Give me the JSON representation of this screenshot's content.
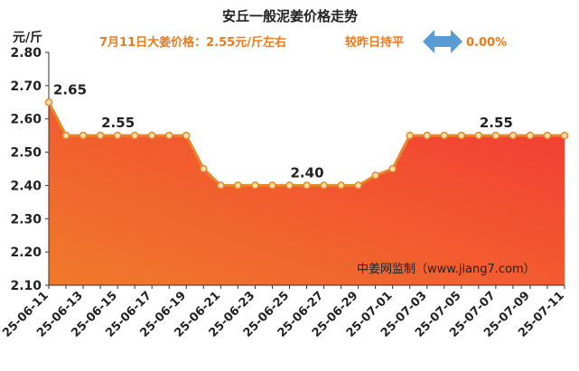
{
  "chart_data": {
    "type": "area",
    "title": "安丘一般泥姜价格走势",
    "subtitle": {
      "price_text": "7月11日大姜价格：2.55元/斤左右",
      "change_text": "较昨日持平",
      "change_value": "0.00%",
      "change_icon": "double-arrow-icon"
    },
    "ylabel": "元/斤",
    "ylim": [
      2.1,
      2.8
    ],
    "yticks": [
      "2.10",
      "2.20",
      "2.30",
      "2.40",
      "2.50",
      "2.60",
      "2.70",
      "2.80"
    ],
    "x": [
      "25-06-11",
      "25-06-12",
      "25-06-13",
      "25-06-14",
      "25-06-15",
      "25-06-16",
      "25-06-17",
      "25-06-18",
      "25-06-19",
      "25-06-20",
      "25-06-21",
      "25-06-22",
      "25-06-23",
      "25-06-24",
      "25-06-25",
      "25-06-26",
      "25-06-27",
      "25-06-28",
      "25-06-29",
      "25-06-30",
      "25-07-01",
      "25-07-02",
      "25-07-03",
      "25-07-04",
      "25-07-05",
      "25-07-06",
      "25-07-07",
      "25-07-08",
      "25-07-09",
      "25-07-10",
      "25-07-11"
    ],
    "xtick_labels": [
      "25-06-11",
      "25-06-13",
      "25-06-15",
      "25-06-17",
      "25-06-19",
      "25-06-21",
      "25-06-23",
      "25-06-25",
      "25-06-27",
      "25-06-29",
      "25-07-01",
      "25-07-03",
      "25-07-05",
      "25-07-07",
      "25-07-09",
      "25-07-11"
    ],
    "series": [
      {
        "values": [
          2.65,
          2.55,
          2.55,
          2.55,
          2.55,
          2.55,
          2.55,
          2.55,
          2.55,
          2.45,
          2.4,
          2.4,
          2.4,
          2.4,
          2.4,
          2.4,
          2.4,
          2.4,
          2.4,
          2.43,
          2.45,
          2.55,
          2.55,
          2.55,
          2.55,
          2.55,
          2.55,
          2.55,
          2.55,
          2.55,
          2.55
        ]
      }
    ],
    "data_labels": [
      {
        "index": 0,
        "text": "2.65"
      },
      {
        "index": 4,
        "text": "2.55"
      },
      {
        "index": 15,
        "text": "2.40"
      },
      {
        "index": 26,
        "text": "2.55"
      }
    ],
    "watermark": "中姜网监制（www.jiang7.com）",
    "colors": {
      "line": "#e8862a",
      "marker_fill": "#fbe0b0",
      "area_top": "#f33a34",
      "area_bottom": "#f07a2a",
      "arrow": "#5b9bd5"
    },
    "grid": false,
    "legend": "none"
  }
}
